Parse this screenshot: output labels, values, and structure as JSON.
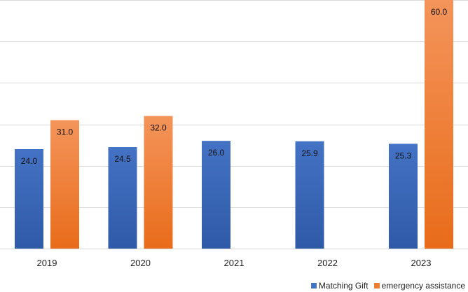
{
  "chart_data": {
    "type": "bar",
    "categories": [
      "2019",
      "2020",
      "2021",
      "2022",
      "2023"
    ],
    "series": [
      {
        "name": "Matching Gift",
        "values": [
          24.0,
          24.5,
          26.0,
          25.9,
          25.3
        ],
        "color": "#4472c4",
        "color_dark": "#2f5aa8"
      },
      {
        "name": "emergency assistance",
        "values": [
          31.0,
          32.0,
          null,
          null,
          60.0
        ],
        "color": "#f4945a",
        "color_dark": "#e86c1a"
      }
    ],
    "ylim": [
      0,
      60
    ],
    "y_gridlines": [
      0,
      10,
      20,
      30,
      40,
      50,
      60
    ],
    "grid": true,
    "y_tick_labels_shown": false,
    "legend_placement": "bottom-right",
    "data_labels": true,
    "gridline_color": "#d9d9d9"
  }
}
